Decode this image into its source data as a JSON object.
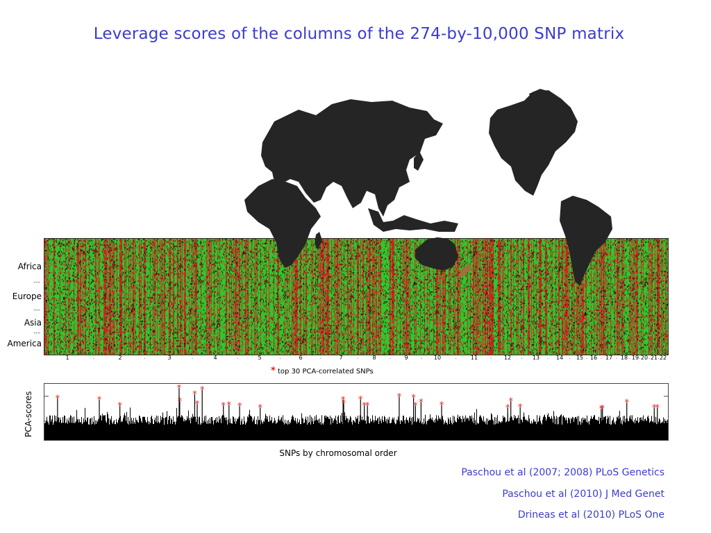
{
  "title": "Leverage scores of the columns of the 274-by-10,000 SNP matrix",
  "matrix": {
    "row_labels": [
      "Africa",
      "Europe",
      "Asia",
      "America"
    ],
    "separators": [
      "---",
      "---",
      "---"
    ],
    "colors": {
      "positive": "#2ec82e",
      "negative": "#d02020",
      "background": "#101010"
    }
  },
  "map": {
    "land_color": "#252525",
    "accent_color": "#a0703a"
  },
  "chromosome_axis": {
    "ticks": [
      "1",
      "2",
      "3",
      "4",
      "5",
      "6",
      "7",
      "8",
      "9",
      "10",
      "11",
      "12",
      "13",
      "14",
      "15",
      "16",
      "17",
      "18",
      "19",
      "20",
      "21",
      "22"
    ]
  },
  "legend": {
    "marker": "*",
    "text": "top 30 PCA-correlated SNPs",
    "marker_color": "#e02020"
  },
  "chart_data": {
    "type": "bar",
    "title": "",
    "xlabel": "SNPs by chromosomal order",
    "ylabel": "PCA-scores",
    "n_columns": 10000,
    "highlighted_top_snp_count": 30,
    "highlight_positions_fraction": [
      0.021,
      0.088,
      0.121,
      0.216,
      0.217,
      0.241,
      0.245,
      0.253,
      0.287,
      0.296,
      0.313,
      0.346,
      0.479,
      0.48,
      0.507,
      0.513,
      0.518,
      0.569,
      0.592,
      0.595,
      0.604,
      0.637,
      0.743,
      0.748,
      0.763,
      0.893,
      0.895,
      0.934,
      0.978,
      0.983
    ],
    "highlight_heights_fraction": [
      0.75,
      0.72,
      0.62,
      0.93,
      0.7,
      0.82,
      0.65,
      0.9,
      0.62,
      0.63,
      0.61,
      0.58,
      0.72,
      0.66,
      0.73,
      0.62,
      0.62,
      0.78,
      0.76,
      0.62,
      0.68,
      0.63,
      0.58,
      0.7,
      0.59,
      0.56,
      0.57,
      0.67,
      0.58,
      0.58
    ],
    "bar_color": "#000000",
    "marker_color": "#e02020"
  },
  "references": [
    "Paschou et al (2007; 2008) PLoS Genetics",
    "Paschou et al (2010) J Med Genet",
    "Drineas et al (2010) PLoS One"
  ]
}
